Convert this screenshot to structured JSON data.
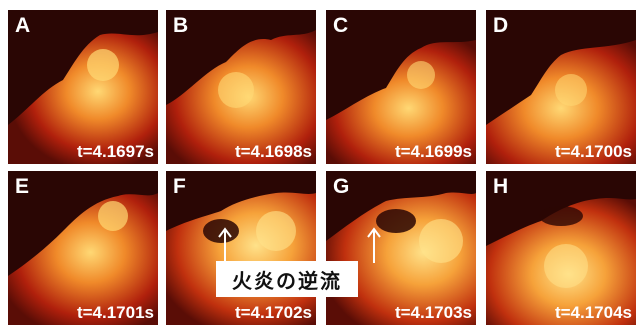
{
  "panels": [
    {
      "letter": "A",
      "time": "t=4.1697s"
    },
    {
      "letter": "B",
      "time": "t=4.1698s"
    },
    {
      "letter": "C",
      "time": "t=4.1699s"
    },
    {
      "letter": "D",
      "time": "t=4.1700s"
    },
    {
      "letter": "E",
      "time": "t=4.1701s"
    },
    {
      "letter": "F",
      "time": "t=4.1702s"
    },
    {
      "letter": "G",
      "time": "t=4.1703s"
    },
    {
      "letter": "H",
      "time": "t=4.1704s"
    }
  ],
  "annotation": {
    "label": "火炎の逆流"
  },
  "colors": {
    "dark": "#2a0604",
    "mid": "#b0200c",
    "bright": "#f08a2a",
    "hot": "#ffd874"
  }
}
